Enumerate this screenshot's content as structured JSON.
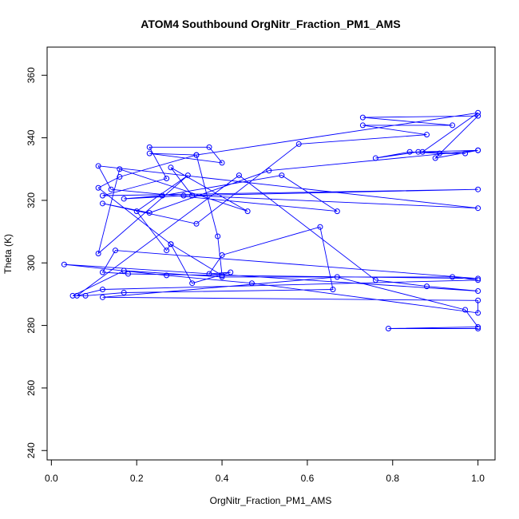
{
  "chart_data": {
    "type": "scatter",
    "mode": "lines+points",
    "title": "ATOM4 Southbound OrgNitr_Fraction_PM1_AMS",
    "xlabel": "OrgNitr_Fraction_PM1_AMS",
    "ylabel": "Theta (K)",
    "xlim": [
      -0.01,
      1.04
    ],
    "ylim": [
      237,
      369
    ],
    "x_ticks": [
      0.0,
      0.2,
      0.4,
      0.6,
      0.8,
      1.0
    ],
    "x_tick_labels": [
      "0.0",
      "0.2",
      "0.4",
      "0.6",
      "0.8",
      "1.0"
    ],
    "y_ticks": [
      240,
      260,
      280,
      300,
      320,
      340,
      360
    ],
    "y_tick_labels": [
      "240",
      "260",
      "280",
      "300",
      "320",
      "340",
      "360"
    ],
    "grid": false,
    "legend": "none",
    "color": "#0000ff",
    "x": [
      1.0,
      0.79,
      1.0,
      0.97,
      0.67,
      0.12,
      1.0,
      1.0,
      0.47,
      0.27,
      0.03,
      1.0,
      0.88,
      0.76,
      0.44,
      0.06,
      0.12,
      1.0,
      0.94,
      0.4,
      0.17,
      0.05,
      0.08,
      0.17,
      0.66,
      0.63,
      0.4,
      0.37,
      0.42,
      0.33,
      0.28,
      0.11,
      0.16,
      0.34,
      0.39,
      0.4,
      1.0,
      0.15,
      0.12,
      0.18,
      0.4,
      0.28,
      0.27,
      0.2,
      0.32,
      0.11,
      0.16,
      0.46,
      0.28,
      0.33,
      1.0,
      0.11,
      0.14,
      0.67,
      0.54,
      0.26,
      0.17,
      0.31,
      1.0,
      0.12,
      0.27,
      0.23,
      0.37,
      0.4,
      0.23,
      0.34,
      1.0,
      0.87,
      0.97,
      0.91,
      0.84,
      0.76,
      0.86,
      1.0,
      0.51,
      0.23,
      0.12,
      0.34,
      0.58,
      0.88,
      0.73,
      0.94,
      0.73,
      1.0,
      0.9,
      1.0
    ],
    "y": [
      279,
      279,
      279.5,
      285,
      295.5,
      289,
      288,
      284,
      293.5,
      296,
      299.5,
      291,
      292.5,
      294.5,
      328,
      289.5,
      291.5,
      294.5,
      295.5,
      295.5,
      297.5,
      289.5,
      289.5,
      290.5,
      291.5,
      311.5,
      302.5,
      296.5,
      297,
      293.5,
      306,
      324,
      327.5,
      334.5,
      308.5,
      296,
      295,
      304,
      297,
      296.5,
      296,
      306,
      304,
      316.5,
      328,
      303,
      330,
      316.5,
      330.5,
      321.5,
      317.5,
      331,
      323.5,
      316.5,
      328,
      321.5,
      320.5,
      321.5,
      323.5,
      321.5,
      327,
      337,
      337,
      332,
      335,
      334.5,
      348,
      335.5,
      335,
      335,
      335.5,
      333.5,
      335.5,
      336,
      329.5,
      316,
      319,
      312.5,
      338,
      341,
      344,
      344,
      346.5,
      347,
      333.5,
      336
    ]
  }
}
